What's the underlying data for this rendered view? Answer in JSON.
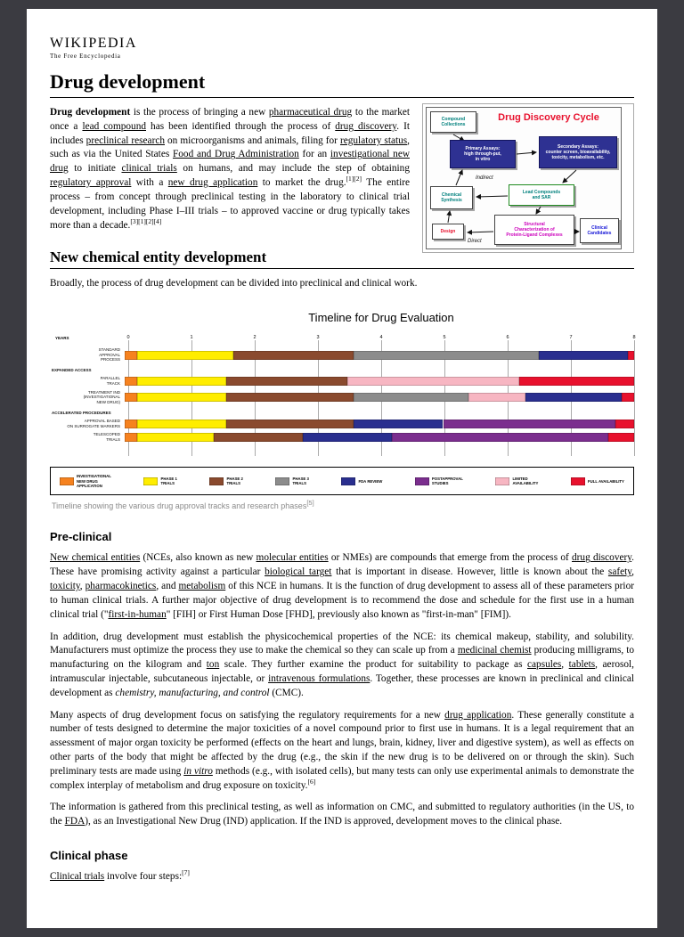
{
  "wordmark": {
    "title": "WIKIPEDIA",
    "subtitle": "The Free Encyclopedia"
  },
  "article": {
    "title": "Drug development",
    "intro": [
      {
        "t": "Drug development",
        "s": "b"
      },
      {
        "t": " is the process of bringing a new "
      },
      {
        "t": "pharmaceutical drug",
        "s": "l"
      },
      {
        "t": " to the market once a "
      },
      {
        "t": "lead compound",
        "s": "l"
      },
      {
        "t": " has been identified through the process of "
      },
      {
        "t": "drug discovery",
        "s": "l"
      },
      {
        "t": ". It includes "
      },
      {
        "t": "preclinical research",
        "s": "l"
      },
      {
        "t": " on microorganisms and animals, filing for "
      },
      {
        "t": "regulatory status",
        "s": "l"
      },
      {
        "t": ", such as via the United States "
      },
      {
        "t": "Food and Drug Administration",
        "s": "l"
      },
      {
        "t": " for an "
      },
      {
        "t": "investigational new drug",
        "s": "l"
      },
      {
        "t": " to initiate "
      },
      {
        "t": "clinical trials",
        "s": "l"
      },
      {
        "t": " on humans, and may include the step of obtaining "
      },
      {
        "t": "regulatory approval",
        "s": "l"
      },
      {
        "t": " with a "
      },
      {
        "t": "new drug application",
        "s": "l"
      },
      {
        "t": " to market the drug."
      },
      {
        "t": "[1][2]",
        "s": "sup"
      },
      {
        "t": " The entire process – from concept through preclinical testing in the laboratory to clinical trial development, including Phase I–III trials – to approved vaccine or drug typically takes more than a decade."
      },
      {
        "t": "[3][1][2][4]",
        "s": "sup"
      }
    ],
    "sections": {
      "nce": {
        "heading": "New chemical entity development",
        "p1": [
          {
            "t": "Broadly, the process of drug development can be divided into preclinical and clinical work."
          }
        ]
      },
      "preclinical": {
        "heading": "Pre-clinical",
        "paras": [
          [
            {
              "t": "New chemical entities",
              "s": "l"
            },
            {
              "t": " (NCEs, also known as new "
            },
            {
              "t": "molecular entities",
              "s": "l"
            },
            {
              "t": " or NMEs) are compounds that emerge from the process of "
            },
            {
              "t": "drug discovery",
              "s": "l"
            },
            {
              "t": ". These have promising activity against a particular "
            },
            {
              "t": "biological target",
              "s": "l"
            },
            {
              "t": " that is important in disease. However, little is known about the "
            },
            {
              "t": "safety",
              "s": "l"
            },
            {
              "t": ", "
            },
            {
              "t": "toxicity",
              "s": "l"
            },
            {
              "t": ", "
            },
            {
              "t": "pharmacokinetics",
              "s": "l"
            },
            {
              "t": ", and "
            },
            {
              "t": "metabolism",
              "s": "l"
            },
            {
              "t": " of this NCE in humans. It is the function of drug development to assess all of these parameters prior to human clinical trials. A further major objective of drug development is to recommend the dose and schedule for the first use in a human clinical trial (\""
            },
            {
              "t": "first-in-human",
              "s": "l"
            },
            {
              "t": "\" [FIH] or First Human Dose [FHD], previously also known as \"first-in-man\" [FIM])."
            }
          ],
          [
            {
              "t": "In addition, drug development must establish the physicochemical properties of the NCE: its chemical makeup, stability, and solubility. Manufacturers must optimize the process they use to make the chemical so they can scale up from a "
            },
            {
              "t": "medicinal chemist",
              "s": "l"
            },
            {
              "t": " producing milligrams, to manufacturing on the kilogram and "
            },
            {
              "t": "ton",
              "s": "l"
            },
            {
              "t": " scale. They further examine the product for suitability to package as "
            },
            {
              "t": "capsules",
              "s": "l"
            },
            {
              "t": ", "
            },
            {
              "t": "tablets",
              "s": "l"
            },
            {
              "t": ", aerosol, intramuscular injectable, subcutaneous injectable, or "
            },
            {
              "t": "intravenous formulations",
              "s": "l"
            },
            {
              "t": ". Together, these processes are known in preclinical and clinical development as "
            },
            {
              "t": "chemistry, manufacturing, and control",
              "s": "i"
            },
            {
              "t": " (CMC)."
            }
          ],
          [
            {
              "t": "Many aspects of drug development focus on satisfying the regulatory requirements for a new "
            },
            {
              "t": "drug application",
              "s": "l"
            },
            {
              "t": ". These generally constitute a number of tests designed to determine the major toxicities of a novel compound prior to first use in humans. It is a legal requirement that an assessment of major organ toxicity be performed (effects on the heart and lungs, brain, kidney, liver and digestive system), as well as effects on other parts of the body that might be affected by the drug (e.g., the skin if the new drug is to be delivered on or through the skin). Such preliminary tests are made using "
            },
            {
              "t": "in vitro",
              "s": "il"
            },
            {
              "t": " methods (e.g., with isolated cells), but many tests can only use experimental animals to demonstrate the complex interplay of metabolism and drug exposure on toxicity."
            },
            {
              "t": "[6]",
              "s": "sup"
            }
          ],
          [
            {
              "t": "The information is gathered from this preclinical testing, as well as information on CMC, and submitted to regulatory authorities (in the US, to the "
            },
            {
              "t": "FDA",
              "s": "l"
            },
            {
              "t": "), as an Investigational New Drug (IND) application. If the IND is approved, development moves to the clinical phase."
            }
          ]
        ]
      },
      "clinical": {
        "heading": "Clinical phase",
        "p1": [
          {
            "t": "Clinical trials",
            "s": "l"
          },
          {
            "t": " involve four steps:"
          },
          {
            "t": "[7]",
            "s": "sup"
          }
        ]
      }
    },
    "chart_caption": [
      {
        "t": "Timeline showing the various drug approval tracks and research phases"
      },
      {
        "t": "[5]",
        "s": "sup"
      }
    ]
  },
  "diagram": {
    "title": "Drug Discovery Cycle",
    "nodes": [
      {
        "id": "compound-collections",
        "label": "Compound\nCollections"
      },
      {
        "id": "primary-assays",
        "label": "Primary Assays:\nhigh through-put,\nin vitro"
      },
      {
        "id": "secondary-assays",
        "label": "Secondary Assays:\ncounter screen, bioavailability,\ntoxicity, metabolism, etc."
      },
      {
        "id": "chemical-synthesis",
        "label": "Chemical\nSynthesis"
      },
      {
        "id": "lead-compounds",
        "label": "Lead Compounds\nand SAR"
      },
      {
        "id": "design",
        "label": "Design"
      },
      {
        "id": "structural-characterization",
        "label": "Structural\nCharacterization of\nProtein-Ligand Complexes"
      },
      {
        "id": "clinical-candidates",
        "label": "Clinical\nCandidates"
      }
    ],
    "edge_labels": [
      "Indirect",
      "Direct"
    ]
  },
  "chart_data": {
    "type": "bar",
    "variant": "horizontal-stacked-timeline",
    "title": "Timeline for Drug Evaluation",
    "x_axis": {
      "label": "YEARS",
      "min": 0,
      "max": 8,
      "ticks": [
        0,
        1,
        2,
        3,
        4,
        5,
        6,
        7,
        8
      ]
    },
    "grid": "vertical",
    "legend_position": "bottom",
    "phases": [
      {
        "key": "ind",
        "label": "INVESTIGATIONAL\nNEW DRUG\nAPPLICATION",
        "color": "#f6821f"
      },
      {
        "key": "phase1",
        "label": "PHASE 1\nTRIALS",
        "color": "#ffed00"
      },
      {
        "key": "phase2",
        "label": "PHASE 2\nTRIALS",
        "color": "#8a4a2e"
      },
      {
        "key": "phase3",
        "label": "PHASE 3\nTRIALS",
        "color": "#8c8c8c"
      },
      {
        "key": "fda",
        "label": "FDA REVIEW",
        "color": "#2a2f8f"
      },
      {
        "key": "post",
        "label": "POSTAPPROVAL\nSTUDIES",
        "color": "#7b2e8e"
      },
      {
        "key": "limited",
        "label": "LIMITED\nAVAILABILITY",
        "color": "#f7b6c2"
      },
      {
        "key": "full",
        "label": "FULL AVAILABILITY",
        "color": "#e8112d"
      }
    ],
    "rows": [
      {
        "group": "",
        "label": "STANDARD\nAPPROVAL\nPROCESS",
        "segments": [
          [
            "ind",
            0,
            0.2
          ],
          [
            "phase1",
            0.2,
            1.7
          ],
          [
            "phase2",
            1.7,
            3.6
          ],
          [
            "phase3",
            3.6,
            6.5
          ],
          [
            "fda",
            6.5,
            7.9
          ],
          [
            "full",
            7.9,
            8
          ]
        ]
      },
      {
        "group": "EXPANDED ACCESS",
        "label": "PARALLEL\nTRACK",
        "segments": [
          [
            "ind",
            0,
            0.2
          ],
          [
            "phase1",
            0.2,
            1.6
          ],
          [
            "phase2",
            1.6,
            3.5
          ],
          [
            "limited",
            3.5,
            6.2
          ],
          [
            "full",
            6.2,
            8
          ]
        ]
      },
      {
        "group": "",
        "label": "TREATMENT IND\n(INVESTIGATIONAL\nNEW DRUG)",
        "segments": [
          [
            "ind",
            0,
            0.2
          ],
          [
            "phase1",
            0.2,
            1.6
          ],
          [
            "phase2",
            1.6,
            3.6
          ],
          [
            "phase3",
            3.6,
            5.4
          ],
          [
            "limited",
            5.4,
            6.3
          ],
          [
            "fda",
            6.3,
            7.8
          ],
          [
            "full",
            7.8,
            8
          ]
        ]
      },
      {
        "group": "ACCELERATED PROCEDURES",
        "label": "APPROVAL BASED\nON SURROGATE MARKERS",
        "segments": [
          [
            "ind",
            0,
            0.2
          ],
          [
            "phase1",
            0.2,
            1.6
          ],
          [
            "phase2",
            1.6,
            3.6
          ],
          [
            "fda",
            3.6,
            5.0
          ],
          [
            "post",
            5.0,
            7.7
          ],
          [
            "full",
            7.7,
            8
          ]
        ]
      },
      {
        "group": "",
        "label": "TELESCOPED\nTRIALS",
        "segments": [
          [
            "ind",
            0,
            0.2
          ],
          [
            "phase1",
            0.2,
            1.4
          ],
          [
            "phase2",
            1.4,
            2.8
          ],
          [
            "fda",
            2.8,
            4.2
          ],
          [
            "post",
            4.2,
            7.6
          ],
          [
            "full",
            7.6,
            8
          ]
        ]
      }
    ]
  }
}
